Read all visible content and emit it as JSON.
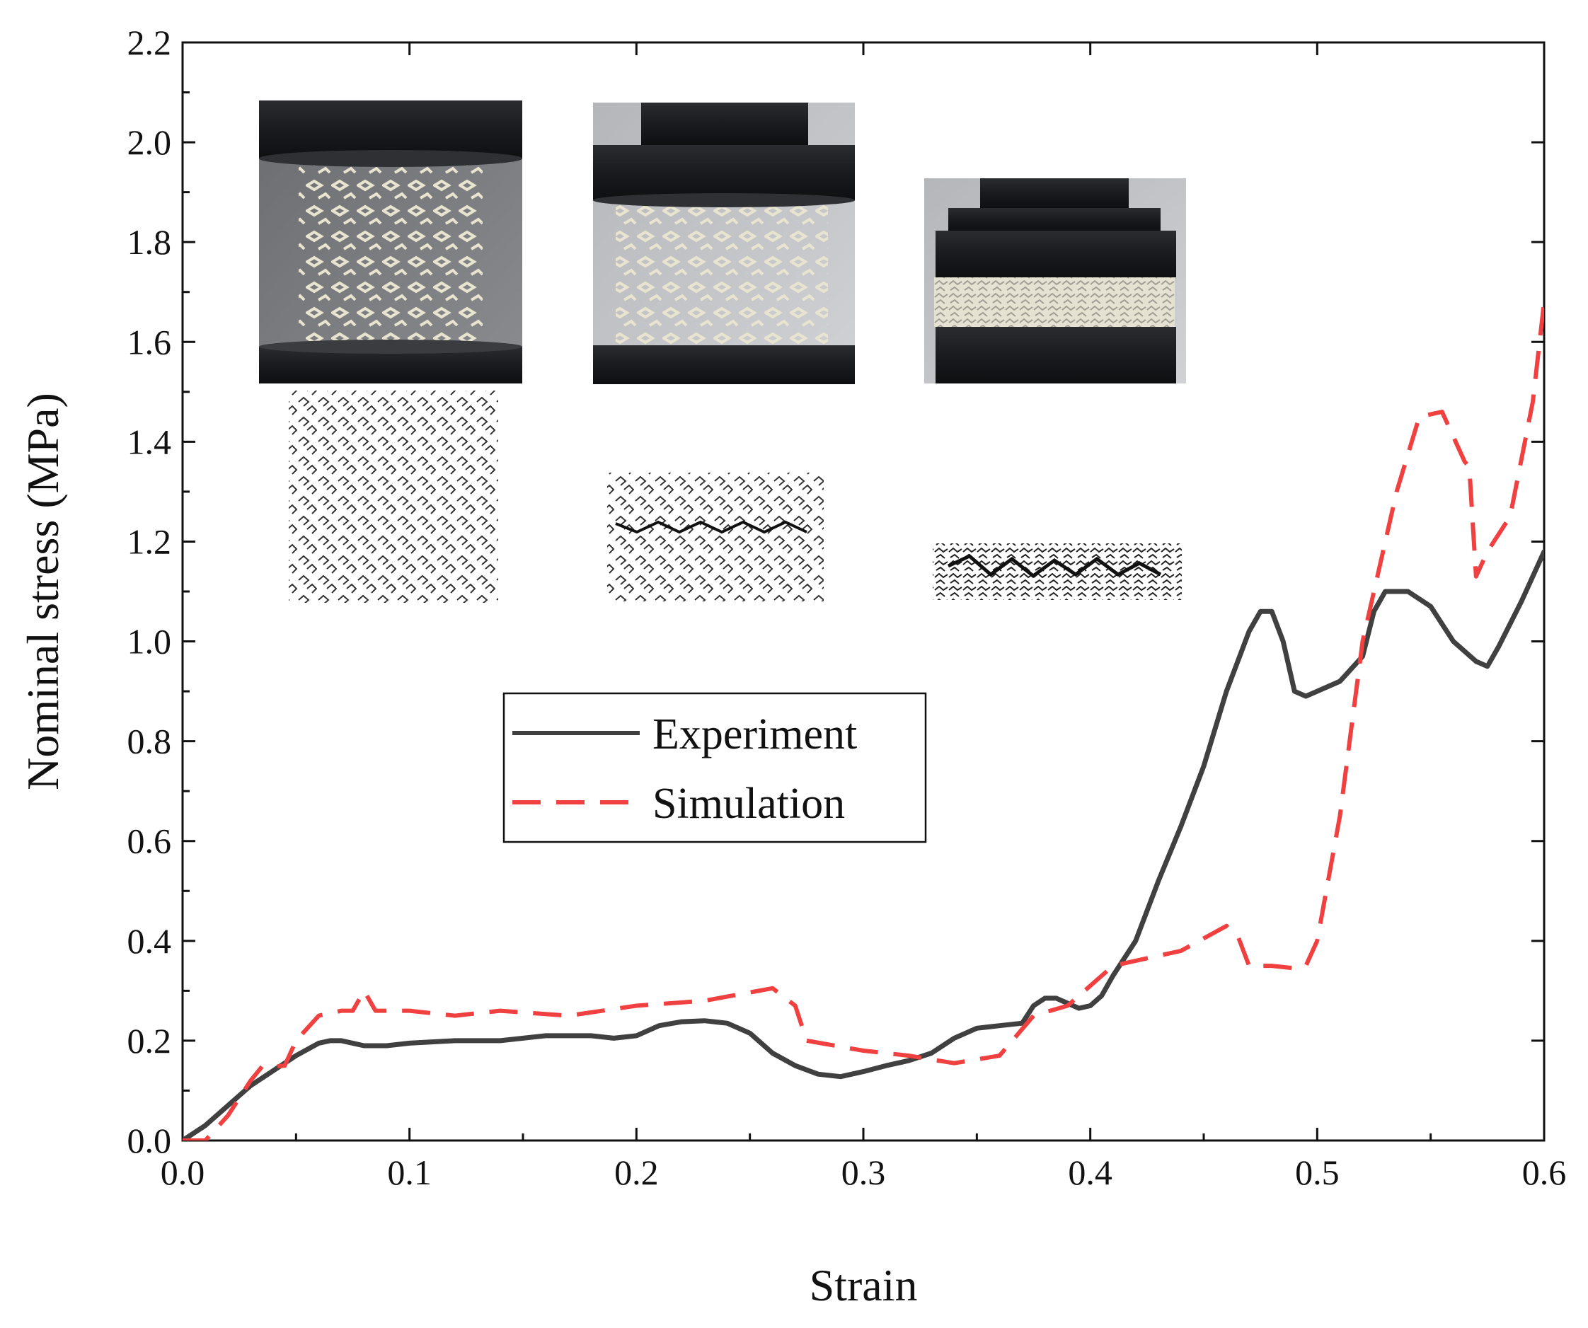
{
  "chart_data": {
    "type": "line",
    "title": "",
    "xlabel": "Strain",
    "ylabel": "Nominal stress (MPa)",
    "xlim": [
      0.0,
      0.6
    ],
    "ylim": [
      0.0,
      2.2
    ],
    "x_ticks": [
      "0.0",
      "0.1",
      "0.2",
      "0.3",
      "0.4",
      "0.5",
      "0.6"
    ],
    "y_ticks": [
      "0.0",
      "0.2",
      "0.4",
      "0.6",
      "0.8",
      "1.0",
      "1.2",
      "1.4",
      "1.6",
      "1.8",
      "2.0",
      "2.2"
    ],
    "grid": false,
    "legend_position": "center-left",
    "series": [
      {
        "name": "Experiment",
        "color": "#404040",
        "style": "solid",
        "points": [
          [
            0.0,
            0.0
          ],
          [
            0.01,
            0.03
          ],
          [
            0.02,
            0.07
          ],
          [
            0.03,
            0.11
          ],
          [
            0.04,
            0.14
          ],
          [
            0.05,
            0.17
          ],
          [
            0.06,
            0.195
          ],
          [
            0.065,
            0.2
          ],
          [
            0.07,
            0.2
          ],
          [
            0.08,
            0.19
          ],
          [
            0.09,
            0.19
          ],
          [
            0.1,
            0.195
          ],
          [
            0.12,
            0.2
          ],
          [
            0.14,
            0.2
          ],
          [
            0.16,
            0.21
          ],
          [
            0.18,
            0.21
          ],
          [
            0.19,
            0.205
          ],
          [
            0.2,
            0.21
          ],
          [
            0.21,
            0.23
          ],
          [
            0.22,
            0.238
          ],
          [
            0.23,
            0.24
          ],
          [
            0.24,
            0.235
          ],
          [
            0.25,
            0.215
          ],
          [
            0.26,
            0.175
          ],
          [
            0.27,
            0.15
          ],
          [
            0.28,
            0.133
          ],
          [
            0.29,
            0.128
          ],
          [
            0.3,
            0.138
          ],
          [
            0.31,
            0.15
          ],
          [
            0.32,
            0.16
          ],
          [
            0.33,
            0.175
          ],
          [
            0.34,
            0.205
          ],
          [
            0.35,
            0.225
          ],
          [
            0.36,
            0.23
          ],
          [
            0.37,
            0.235
          ],
          [
            0.375,
            0.27
          ],
          [
            0.38,
            0.285
          ],
          [
            0.385,
            0.285
          ],
          [
            0.39,
            0.275
          ],
          [
            0.395,
            0.265
          ],
          [
            0.4,
            0.27
          ],
          [
            0.405,
            0.29
          ],
          [
            0.41,
            0.33
          ],
          [
            0.42,
            0.4
          ],
          [
            0.43,
            0.52
          ],
          [
            0.44,
            0.63
          ],
          [
            0.45,
            0.75
          ],
          [
            0.46,
            0.9
          ],
          [
            0.47,
            1.02
          ],
          [
            0.475,
            1.06
          ],
          [
            0.48,
            1.06
          ],
          [
            0.485,
            1.0
          ],
          [
            0.49,
            0.9
          ],
          [
            0.495,
            0.89
          ],
          [
            0.5,
            0.9
          ],
          [
            0.51,
            0.92
          ],
          [
            0.52,
            0.97
          ],
          [
            0.525,
            1.06
          ],
          [
            0.53,
            1.1
          ],
          [
            0.54,
            1.1
          ],
          [
            0.55,
            1.07
          ],
          [
            0.56,
            1.0
          ],
          [
            0.57,
            0.96
          ],
          [
            0.575,
            0.95
          ],
          [
            0.58,
            0.99
          ],
          [
            0.59,
            1.08
          ],
          [
            0.6,
            1.18
          ]
        ]
      },
      {
        "name": "Simulation",
        "color": "#f04040",
        "style": "dashed",
        "points": [
          [
            0.0,
            0.0
          ],
          [
            0.01,
            0.0
          ],
          [
            0.02,
            0.05
          ],
          [
            0.03,
            0.12
          ],
          [
            0.035,
            0.148
          ],
          [
            0.04,
            0.148
          ],
          [
            0.045,
            0.15
          ],
          [
            0.05,
            0.2
          ],
          [
            0.06,
            0.25
          ],
          [
            0.07,
            0.26
          ],
          [
            0.075,
            0.26
          ],
          [
            0.08,
            0.3
          ],
          [
            0.085,
            0.26
          ],
          [
            0.1,
            0.26
          ],
          [
            0.12,
            0.25
          ],
          [
            0.14,
            0.26
          ],
          [
            0.17,
            0.25
          ],
          [
            0.2,
            0.27
          ],
          [
            0.23,
            0.28
          ],
          [
            0.26,
            0.305
          ],
          [
            0.27,
            0.27
          ],
          [
            0.275,
            0.2
          ],
          [
            0.3,
            0.18
          ],
          [
            0.32,
            0.17
          ],
          [
            0.34,
            0.155
          ],
          [
            0.36,
            0.17
          ],
          [
            0.375,
            0.25
          ],
          [
            0.39,
            0.27
          ],
          [
            0.41,
            0.35
          ],
          [
            0.44,
            0.38
          ],
          [
            0.46,
            0.43
          ],
          [
            0.465,
            0.41
          ],
          [
            0.47,
            0.35
          ],
          [
            0.48,
            0.35
          ],
          [
            0.49,
            0.345
          ],
          [
            0.495,
            0.35
          ],
          [
            0.5,
            0.4
          ],
          [
            0.51,
            0.65
          ],
          [
            0.52,
            1.0
          ],
          [
            0.535,
            1.3
          ],
          [
            0.545,
            1.45
          ],
          [
            0.555,
            1.46
          ],
          [
            0.565,
            1.36
          ],
          [
            0.567,
            1.35
          ],
          [
            0.57,
            1.13
          ],
          [
            0.575,
            1.18
          ],
          [
            0.585,
            1.25
          ],
          [
            0.595,
            1.48
          ],
          [
            0.6,
            1.68
          ]
        ]
      }
    ]
  }
}
